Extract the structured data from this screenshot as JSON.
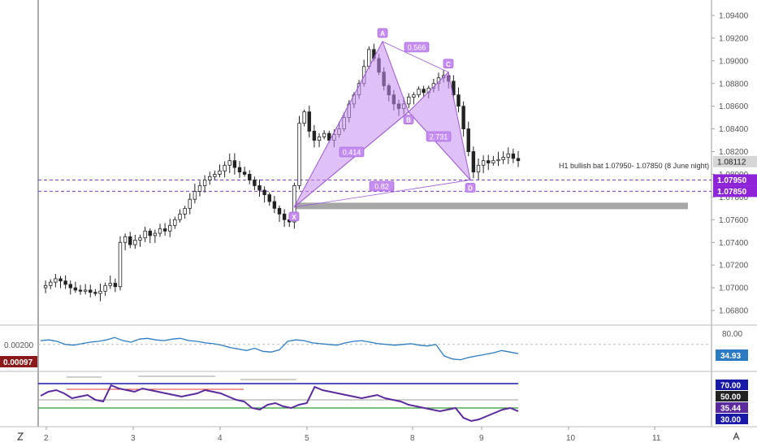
{
  "chart_data": {
    "type": "candlestick",
    "main_price_ticks": [
      "1.09400",
      "1.09200",
      "1.09000",
      "1.08800",
      "1.08600",
      "1.08400",
      "1.08200",
      "1.08000",
      "1.07800",
      "1.07600",
      "1.07400",
      "1.07200",
      "1.07000",
      "1.06800"
    ],
    "x_ticks": [
      "2",
      "3",
      "4",
      "5",
      "8",
      "9",
      "10",
      "11"
    ],
    "price_range": [
      1.067,
      1.095
    ],
    "candle_path": [
      1.07,
      1.0702,
      1.0705,
      1.0708,
      1.0706,
      1.0703,
      1.07,
      1.0698,
      1.0697,
      1.0698,
      1.0696,
      1.0695,
      1.0697,
      1.0702,
      1.0704,
      1.0701,
      1.074,
      1.0745,
      1.0738,
      1.0742,
      1.0744,
      1.075,
      1.0746,
      1.0748,
      1.0752,
      1.075,
      1.0755,
      1.076,
      1.0765,
      1.077,
      1.0778,
      1.0785,
      1.079,
      1.0795,
      1.0798,
      1.08,
      1.0803,
      1.0808,
      1.0812,
      1.0806,
      1.0802,
      1.08,
      1.0795,
      1.079,
      1.0786,
      1.0782,
      1.0776,
      1.077,
      1.0765,
      1.076,
      1.0758,
      1.079,
      1.0845,
      1.0855,
      1.0838,
      1.083,
      1.0833,
      1.0836,
      1.083,
      1.0835,
      1.084,
      1.085,
      1.0862,
      1.087,
      1.088,
      1.0895,
      1.091,
      1.0902,
      1.089,
      1.0878,
      1.087,
      1.0862,
      1.0858,
      1.0862,
      1.0868,
      1.087,
      1.0875,
      1.0872,
      1.0876,
      1.088,
      1.0885,
      1.0887,
      1.0882,
      1.087,
      1.086,
      1.084,
      1.082,
      1.0802,
      1.0808,
      1.0812,
      1.081,
      1.0812,
      1.0813,
      1.0815,
      1.0818,
      1.0814,
      1.0812
    ],
    "harmonic_pattern": {
      "points": [
        {
          "label": "X",
          "value": 1.0771
        },
        {
          "label": "A",
          "value": 1.0917
        },
        {
          "label": "B",
          "value": 1.0855
        },
        {
          "label": "C",
          "value": 1.089
        },
        {
          "label": "D",
          "value": 1.0795
        }
      ],
      "ratios": [
        "0.414",
        "0.566",
        "2.731",
        "0.82"
      ]
    },
    "annotation": "H1 bullish bat 1.07950- 1.07850 (8 June night)",
    "levels": [
      1.0795,
      1.0785
    ],
    "current_price": "1.08112",
    "level_tags": [
      "1.07950",
      "1.07850"
    ],
    "support_zone": [
      1.077,
      1.0775
    ],
    "ind1": {
      "left_label": "0.00200",
      "left_value": "0.00097",
      "right_tick": "80.00",
      "right_value": "34.93",
      "series": [
        70,
        72,
        68,
        60,
        58,
        62,
        66,
        68,
        72,
        78,
        70,
        66,
        74,
        76,
        72,
        70,
        74,
        76,
        70,
        68,
        64,
        62,
        58,
        52,
        48,
        44,
        50,
        42,
        40,
        46,
        68,
        72,
        70,
        64,
        62,
        60,
        58,
        64,
        68,
        70,
        66,
        62,
        60,
        58,
        60,
        62,
        58,
        56,
        60,
        30,
        22,
        20,
        26,
        30,
        34,
        38,
        44,
        40,
        36
      ]
    },
    "ind2": {
      "right_ticks": [
        "70.00",
        "50.00",
        "35.44",
        "30.00"
      ],
      "overbought": 70,
      "oversold": 30,
      "series": [
        55,
        60,
        62,
        58,
        52,
        54,
        56,
        50,
        48,
        68,
        64,
        62,
        60,
        64,
        62,
        60,
        58,
        56,
        54,
        56,
        58,
        62,
        60,
        58,
        54,
        50,
        48,
        40,
        38,
        44,
        46,
        42,
        40,
        44,
        46,
        66,
        62,
        60,
        58,
        56,
        54,
        52,
        54,
        56,
        52,
        50,
        48,
        44,
        42,
        40,
        38,
        36,
        38,
        40,
        28,
        24,
        26,
        30,
        34,
        38,
        40,
        36
      ]
    }
  }
}
